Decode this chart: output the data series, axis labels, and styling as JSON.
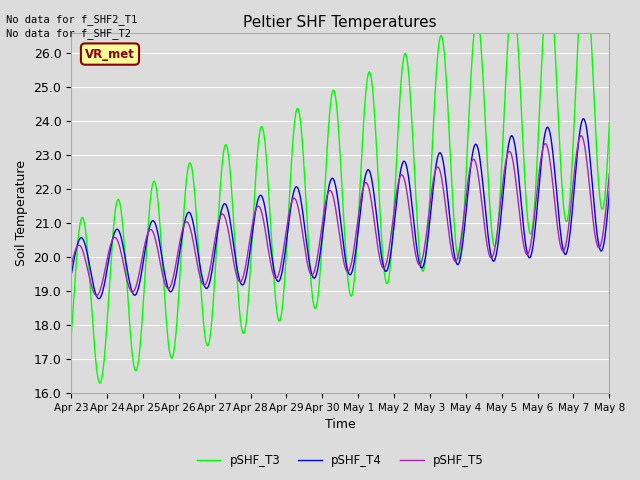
{
  "title": "Peltier SHF Temperatures",
  "xlabel": "Time",
  "ylabel": "Soil Temperature",
  "ylim": [
    16.0,
    26.6
  ],
  "yticks": [
    16.0,
    17.0,
    18.0,
    19.0,
    20.0,
    21.0,
    22.0,
    23.0,
    24.0,
    25.0,
    26.0
  ],
  "xtick_labels": [
    "Apr 23",
    "Apr 24",
    "Apr 25",
    "Apr 26",
    "Apr 27",
    "Apr 28",
    "Apr 29",
    "Apr 30",
    "May 1",
    "May 2",
    "May 3",
    "May 4",
    "May 5",
    "May 6",
    "May 7",
    "May 8"
  ],
  "no_data_text1": "No data for f_SHF2_T1",
  "no_data_text2": "No data for f_SHF_T2",
  "vr_met_label": "VR_met",
  "legend_labels": [
    "pSHF_T3",
    "pSHF_T4",
    "pSHF_T5"
  ],
  "colors": {
    "pSHF_T3": "#00FF00",
    "pSHF_T4": "#0000EE",
    "pSHF_T5": "#AA22BB"
  },
  "fig_bg_color": "#DCDCDC",
  "plot_bg_color": "#DCDCDC",
  "grid_color": "#FFFFFF",
  "n_days": 15,
  "n_pts": 720,
  "trend3_base": 18.5,
  "trend3_slope": 0.45,
  "amp3_base": 2.5,
  "amp3_slope": 0.085,
  "phase3": -0.35,
  "trend4_base": 19.6,
  "trend4_slope": 0.175,
  "amp4_base": 0.9,
  "amp4_slope": 0.075,
  "phase4": -0.15,
  "trend5_base": 19.55,
  "trend5_slope": 0.165,
  "amp5_base": 0.75,
  "amp5_slope": 0.065,
  "phase5": 0.25
}
